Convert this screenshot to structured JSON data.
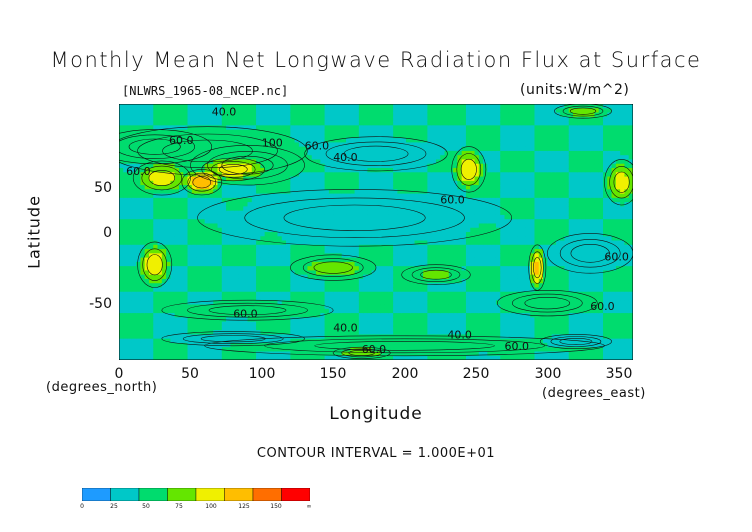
{
  "chart_data": {
    "type": "heatmap",
    "title": "Monthly Mean Net Longwave Radiation Flux at Surface",
    "file_label": "[NLWRS_1965-08_NCEP.nc]",
    "units_label": "(units:W/m^2)",
    "xlabel": "Longitude",
    "ylabel": "Latitude",
    "x_unit_label": "(degrees_east)",
    "y_unit_label": "(degrees_north)",
    "xlim": [
      0,
      360
    ],
    "ylim": [
      -90,
      90
    ],
    "x_ticks": [
      "0",
      "50",
      "100",
      "150",
      "200",
      "250",
      "300",
      "350"
    ],
    "y_ticks": [
      "50",
      "0",
      "-50"
    ],
    "contour_interval_label": "CONTOUR INTERVAL = 1.000E+01",
    "contour_labels": [
      "40.0",
      "60.0",
      "100",
      "40.0",
      "60.0",
      "60.0",
      "60.0",
      "60.0",
      "60.0",
      "40.0",
      "60.0",
      "60.0",
      "40.0",
      "60.0"
    ],
    "colorbar": {
      "levels": [
        "0",
        "25",
        "50",
        "75",
        "100",
        "125",
        "150",
        "∞"
      ],
      "colors": [
        "#1e9bff",
        "#00c8c8",
        "#00dc6e",
        "#64e600",
        "#f0f000",
        "#ffbe00",
        "#ff6e00",
        "#ff0000"
      ]
    },
    "blobs": [
      {
        "lon": 25,
        "lat": 60,
        "rlon": 40,
        "rlat": 12,
        "v": 60
      },
      {
        "lon": 62,
        "lat": 57,
        "rlon": 70,
        "rlat": 17,
        "v": 62
      },
      {
        "lon": 90,
        "lat": 47,
        "rlon": 40,
        "rlat": 14,
        "v": 75
      },
      {
        "lon": 30,
        "lat": 38,
        "rlon": 20,
        "rlat": 12,
        "v": 112
      },
      {
        "lon": 58,
        "lat": 35,
        "rlon": 14,
        "rlat": 9,
        "v": 150
      },
      {
        "lon": 80,
        "lat": 44,
        "rlon": 22,
        "rlat": 8,
        "v": 115
      },
      {
        "lon": 245,
        "lat": 44,
        "rlon": 12,
        "rlat": 16,
        "v": 118
      },
      {
        "lon": 352,
        "lat": 35,
        "rlon": 12,
        "rlat": 16,
        "v": 110
      },
      {
        "lon": 25,
        "lat": -23,
        "rlon": 12,
        "rlat": 16,
        "v": 118
      },
      {
        "lon": 293,
        "lat": -25,
        "rlon": 6,
        "rlat": 16,
        "v": 135
      },
      {
        "lon": 150,
        "lat": -25,
        "rlon": 30,
        "rlat": 9,
        "v": 88
      },
      {
        "lon": 222,
        "lat": -30,
        "rlon": 24,
        "rlat": 7,
        "v": 82
      },
      {
        "lon": 165,
        "lat": 10,
        "rlon": 110,
        "rlat": 20,
        "v": 46
      },
      {
        "lon": 300,
        "lat": -50,
        "rlon": 35,
        "rlat": 9,
        "v": 55
      },
      {
        "lon": 90,
        "lat": -55,
        "rlon": 60,
        "rlat": 7,
        "v": 58
      },
      {
        "lon": 200,
        "lat": -80,
        "rlon": 140,
        "rlat": 7,
        "v": 58
      },
      {
        "lon": 80,
        "lat": -75,
        "rlon": 50,
        "rlat": 5,
        "v": 38
      },
      {
        "lon": 320,
        "lat": -77,
        "rlon": 25,
        "rlat": 5,
        "v": 28
      },
      {
        "lon": 170,
        "lat": -85,
        "rlon": 20,
        "rlat": 4,
        "v": 95
      },
      {
        "lon": 325,
        "lat": 85,
        "rlon": 20,
        "rlat": 5,
        "v": 88
      },
      {
        "lon": 180,
        "lat": 55,
        "rlon": 50,
        "rlat": 12,
        "v": 40
      },
      {
        "lon": 330,
        "lat": -15,
        "rlon": 30,
        "rlat": 14,
        "v": 40
      }
    ]
  }
}
